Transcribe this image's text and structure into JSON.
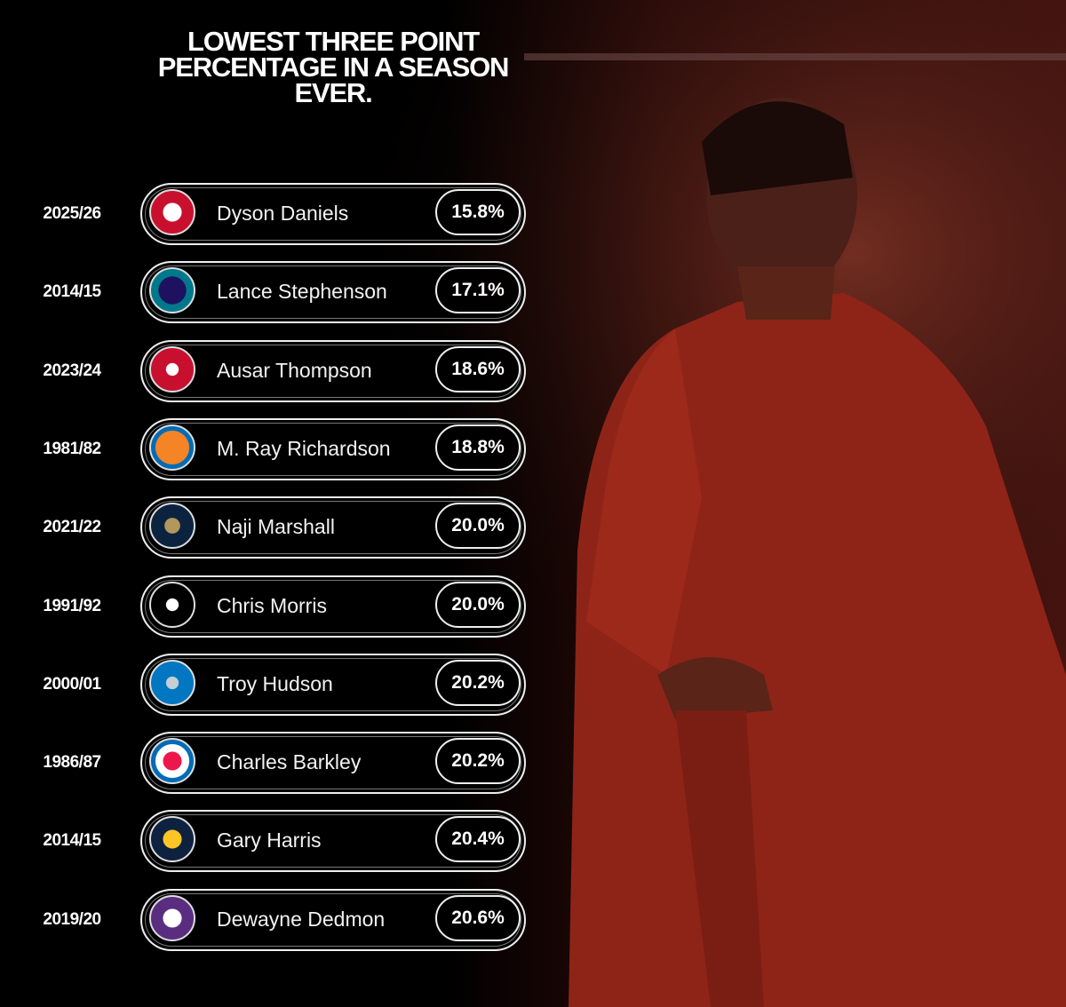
{
  "header": {
    "title": "LOWEST THREE POINT PERCENTAGE IN A SEASON EVER."
  },
  "rows": [
    {
      "season": "2025/26",
      "player": "Dyson Daniels",
      "pct": "15.8%"
    },
    {
      "season": "2014/15",
      "player": "Lance Stephenson",
      "pct": "17.1%"
    },
    {
      "season": "2023/24",
      "player": "Ausar Thompson",
      "pct": "18.6%"
    },
    {
      "season": "1981/82",
      "player": "M. Ray Richardson",
      "pct": "18.8%"
    },
    {
      "season": "2021/22",
      "player": "Naji Marshall",
      "pct": "20.0%"
    },
    {
      "season": "1991/92",
      "player": "Chris Morris",
      "pct": "20.0%"
    },
    {
      "season": "2000/01",
      "player": "Troy Hudson",
      "pct": "20.2%"
    },
    {
      "season": "1986/87",
      "player": "Charles Barkley",
      "pct": "20.2%"
    },
    {
      "season": "2014/15",
      "player": "Gary Harris",
      "pct": "20.4%"
    },
    {
      "season": "2019/20",
      "player": "Dewayne Dedmon",
      "pct": "20.6%"
    }
  ]
}
